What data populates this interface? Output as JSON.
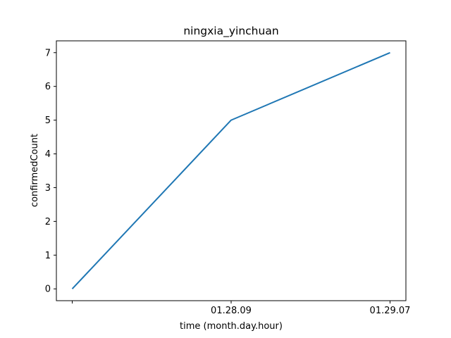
{
  "chart_data": {
    "type": "line",
    "title": "ningxia_yinchuan",
    "xlabel": "time (month.day.hour)",
    "ylabel": "confirmedCount",
    "categories": [
      "",
      "01.28.09",
      "01.29.07"
    ],
    "series": [
      {
        "values": [
          0,
          5,
          7
        ],
        "color": "#1f77b4"
      }
    ],
    "ylim": [
      -0.35,
      7.35
    ],
    "yticks": [
      0,
      1,
      2,
      3,
      4,
      5,
      6,
      7
    ],
    "grid": false
  }
}
